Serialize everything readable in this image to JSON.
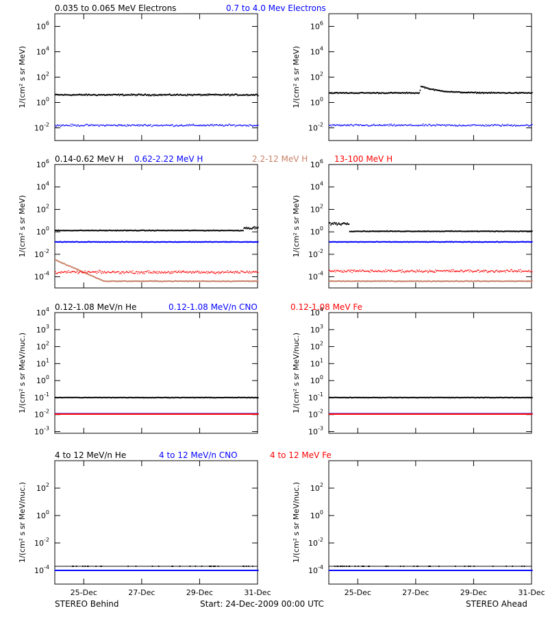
{
  "footer": {
    "left": "STEREO Behind",
    "center": "Start: 24-Dec-2009 00:00 UTC",
    "right": "STEREO Ahead"
  },
  "colors": {
    "black": "#000000",
    "blue": "#0000ff",
    "tan": "#c87f66",
    "red": "#ff0000"
  },
  "chart_data": [
    {
      "type": "scatter",
      "row": 1,
      "legend": [
        {
          "text": "0.035 to 0.065 MeV Electrons",
          "color": "#000000"
        },
        {
          "text": "0.7 to 4.0 Mev Electrons",
          "color": "#0000ff"
        }
      ],
      "ylabel": "1/(cm² s sr MeV)",
      "yscale": "log",
      "ylim_exp": [
        -3,
        7
      ],
      "yticks": [
        {
          "base": "10",
          "exp": "6"
        },
        {
          "base": "10",
          "exp": "4"
        },
        {
          "base": "10",
          "exp": "2"
        },
        {
          "base": "10",
          "exp": "0"
        },
        {
          "base": "10",
          "exp": "-2"
        }
      ],
      "ytick_exps": [
        6,
        4,
        2,
        0,
        -2
      ],
      "panels": [
        {
          "spacecraft": "STEREO Behind",
          "series": [
            {
              "color": "#000000",
              "level": 0.6,
              "noise": 0.08
            },
            {
              "color": "#0000ff",
              "level": -1.8,
              "noise": 0.12
            }
          ]
        },
        {
          "spacecraft": "STEREO Ahead",
          "series": [
            {
              "color": "#000000",
              "level": 0.75,
              "noise": 0.06,
              "bump": {
                "at": 0.46,
                "height": 0.5,
                "width": 0.05
              }
            },
            {
              "color": "#0000ff",
              "level": -1.8,
              "noise": 0.12
            }
          ]
        }
      ]
    },
    {
      "type": "scatter",
      "row": 2,
      "legend": [
        {
          "text": "0.14-0.62 MeV H",
          "color": "#000000"
        },
        {
          "text": "0.62-2.22 MeV H",
          "color": "#0000ff"
        },
        {
          "text": "2.2-12 MeV H",
          "color": "#c87f66"
        },
        {
          "text": "13-100 MeV H",
          "color": "#ff0000"
        }
      ],
      "ylabel": "1/(cm² s sr MeV)",
      "yscale": "log",
      "ylim_exp": [
        -5,
        6
      ],
      "yticks": [
        {
          "base": "10",
          "exp": "6"
        },
        {
          "base": "10",
          "exp": "4"
        },
        {
          "base": "10",
          "exp": "2"
        },
        {
          "base": "10",
          "exp": "0"
        },
        {
          "base": "10",
          "exp": "-2"
        },
        {
          "base": "10",
          "exp": "-4"
        }
      ],
      "ytick_exps": [
        6,
        4,
        2,
        0,
        -2,
        -4
      ],
      "panels": [
        {
          "spacecraft": "STEREO Behind",
          "series": [
            {
              "color": "#000000",
              "level": 0.12,
              "noise": 0.04,
              "rise_end": 0.3
            },
            {
              "color": "#0000ff",
              "level": -0.9,
              "noise": 0.04
            },
            {
              "color": "#c87f66",
              "level": -4.4,
              "noise": 0.05,
              "decay_start": -2.5,
              "decay_len": 0.12
            },
            {
              "color": "#ff0000",
              "level": -3.6,
              "noise": 0.18
            }
          ]
        },
        {
          "spacecraft": "STEREO Ahead",
          "series": [
            {
              "color": "#000000",
              "level": 0.05,
              "noise": 0.04,
              "early": 0.8,
              "early_len": 0.1
            },
            {
              "color": "#0000ff",
              "level": -0.9,
              "noise": 0.04
            },
            {
              "color": "#c87f66",
              "level": -4.4,
              "noise": 0.05
            },
            {
              "color": "#ff0000",
              "level": -3.5,
              "noise": 0.18
            }
          ]
        }
      ]
    },
    {
      "type": "scatter",
      "row": 3,
      "legend": [
        {
          "text": "0.12-1.08 MeV/n He",
          "color": "#000000"
        },
        {
          "text": "0.12-1.08 MeV/n CNO",
          "color": "#0000ff"
        },
        {
          "text": "0.12-1.08 MeV Fe",
          "color": "#ff0000"
        }
      ],
      "ylabel": "1/(cm² s sr MeV/nuc.)",
      "yscale": "log",
      "ylim_exp": [
        -3.1,
        4
      ],
      "yticks": [
        {
          "base": "10",
          "exp": "4"
        },
        {
          "base": "10",
          "exp": "3"
        },
        {
          "base": "10",
          "exp": "2"
        },
        {
          "base": "10",
          "exp": "1"
        },
        {
          "base": "10",
          "exp": "0"
        },
        {
          "base": "10",
          "exp": "-1"
        },
        {
          "base": "10",
          "exp": "-2"
        },
        {
          "base": "10",
          "exp": "-3"
        }
      ],
      "ytick_exps": [
        4,
        3,
        2,
        1,
        0,
        -1,
        -2,
        -3
      ],
      "panels": [
        {
          "spacecraft": "STEREO Behind",
          "series": [
            {
              "color": "#000000",
              "level": -1.0,
              "noise": 0.02,
              "sparse": 0.25
            },
            {
              "color": "#0000ff",
              "level": -1.95,
              "noise": 0.0
            },
            {
              "color": "#ff0000",
              "level": -1.97,
              "noise": 0.0
            }
          ]
        },
        {
          "spacecraft": "STEREO Ahead",
          "series": [
            {
              "color": "#000000",
              "level": -1.0,
              "noise": 0.02,
              "sparse": 0.25
            },
            {
              "color": "#0000ff",
              "level": -1.95,
              "noise": 0.0
            },
            {
              "color": "#ff0000",
              "level": -1.97,
              "noise": 0.0
            }
          ]
        }
      ]
    },
    {
      "type": "scatter",
      "row": 4,
      "legend": [
        {
          "text": "4 to 12 MeV/n He",
          "color": "#000000"
        },
        {
          "text": "4 to 12 MeV/n CNO",
          "color": "#0000ff"
        },
        {
          "text": "4 to 12 MeV Fe",
          "color": "#ff0000"
        }
      ],
      "ylabel": "1/(cm² s sr MeV/nuc.)",
      "yscale": "log",
      "ylim_exp": [
        -5,
        4
      ],
      "yticks": [
        {
          "base": "10",
          "exp": "2"
        },
        {
          "base": "10",
          "exp": "0"
        },
        {
          "base": "10",
          "exp": "-2"
        },
        {
          "base": "10",
          "exp": "-4"
        }
      ],
      "ytick_exps": [
        2,
        0,
        -2,
        -4
      ],
      "xticks": [
        "25-Dec",
        "27-Dec",
        "29-Dec",
        "31-Dec"
      ],
      "panels": [
        {
          "spacecraft": "STEREO Behind",
          "series": [
            {
              "color": "#000000",
              "level": -3.7,
              "noise": 0.0,
              "sparse": 0.12
            },
            {
              "color": "#0000ff",
              "level": -4.0,
              "noise": 0.0
            }
          ]
        },
        {
          "spacecraft": "STEREO Ahead",
          "series": [
            {
              "color": "#000000",
              "level": -3.7,
              "noise": 0.0,
              "sparse": 0.12
            },
            {
              "color": "#0000ff",
              "level": -4.0,
              "noise": 0.0
            }
          ]
        }
      ]
    }
  ],
  "xticks": [
    "25-Dec",
    "27-Dec",
    "29-Dec",
    "31-Dec"
  ],
  "xtick_days": [
    1,
    3,
    5,
    7
  ],
  "xlim_days": [
    0,
    7
  ]
}
